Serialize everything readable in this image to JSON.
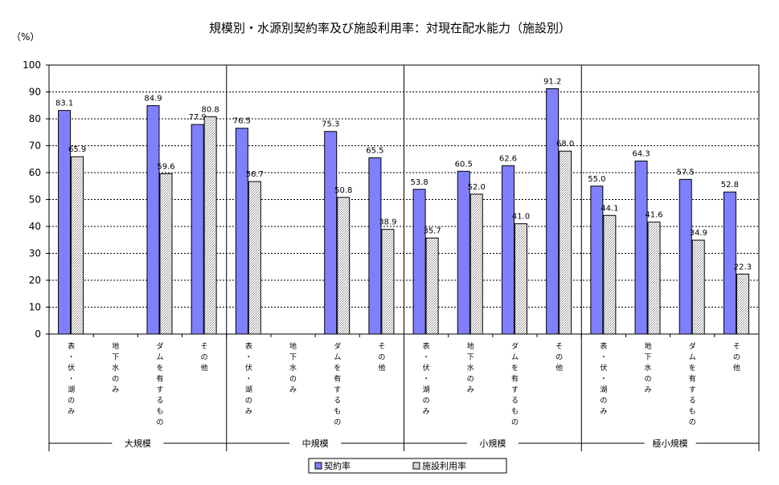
{
  "chart_data": {
    "type": "bar",
    "title": "規模別・水源別契約率及び施設利用率：対現在配水能力（施設別）",
    "ylabel": "（%）",
    "ylim": [
      0,
      100
    ],
    "yticks": [
      0,
      10,
      20,
      30,
      40,
      50,
      60,
      70,
      80,
      90,
      100
    ],
    "grid": true,
    "legend_position": "bottom-center",
    "groups": [
      "大規模",
      "中規模",
      "小規模",
      "極小規模"
    ],
    "sub_categories": [
      "表・伏・湖のみ",
      "地下水のみ",
      "ダムを有するもの",
      "その他"
    ],
    "categories": [
      "表・伏・湖のみ",
      "地下水のみ",
      "ダムを有するもの",
      "その他",
      "表・伏・湖のみ",
      "地下水のみ",
      "ダムを有するもの",
      "その他",
      "表・伏・湖のみ",
      "地下水のみ",
      "ダムを有するもの",
      "その他",
      "表・伏・湖のみ",
      "地下水のみ",
      "ダムを有するもの",
      "その他"
    ],
    "series": [
      {
        "name": "契約率",
        "color": "#8080ff",
        "values": [
          83.1,
          null,
          84.9,
          77.9,
          76.5,
          null,
          75.3,
          65.5,
          53.8,
          60.5,
          62.6,
          91.2,
          55.0,
          64.3,
          57.5,
          52.8
        ]
      },
      {
        "name": "施設利用率",
        "color": "#e8e8e8",
        "values": [
          65.9,
          null,
          59.6,
          80.8,
          56.7,
          null,
          50.8,
          38.9,
          35.7,
          52.0,
          41.0,
          68.0,
          44.1,
          41.6,
          34.9,
          22.3
        ]
      }
    ]
  }
}
